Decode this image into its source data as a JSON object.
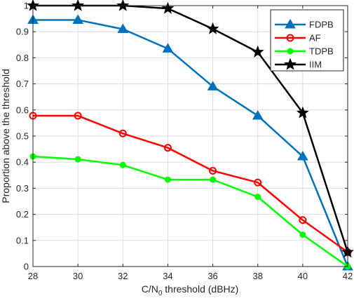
{
  "chart_data": {
    "type": "line",
    "title": "",
    "xlabel": "C/N",
    "xlabel_sub": "0",
    "xlabel_rest": " threshold (dBHz)",
    "ylabel": "Proportion above the threshold",
    "x": [
      28,
      30,
      32,
      34,
      36,
      38,
      40,
      42
    ],
    "xlim": [
      28,
      42
    ],
    "ylim": [
      0,
      1
    ],
    "xticks": [
      "28",
      "30",
      "32",
      "34",
      "36",
      "38",
      "40",
      "42"
    ],
    "yticks": [
      "0",
      "0.1",
      "0.2",
      "0.3",
      "0.4",
      "0.5",
      "0.6",
      "0.7",
      "0.8",
      "0.9",
      "1"
    ],
    "grid": true,
    "legend_position": "top-right",
    "series": [
      {
        "name": "FDPB",
        "color": "#0072BD",
        "marker": "triangle",
        "values": [
          0.945,
          0.945,
          0.91,
          0.835,
          0.69,
          0.578,
          0.422,
          0.0
        ]
      },
      {
        "name": "AF",
        "color": "#FF0000",
        "marker": "circle",
        "values": [
          0.578,
          0.578,
          0.51,
          0.455,
          0.367,
          0.322,
          0.178,
          0.055
        ]
      },
      {
        "name": "TDPB",
        "color": "#00FF00",
        "marker": "circle-filled",
        "values": [
          0.422,
          0.411,
          0.389,
          0.333,
          0.333,
          0.267,
          0.122,
          0.0
        ]
      },
      {
        "name": "IIM",
        "color": "#000000",
        "marker": "star",
        "values": [
          1.0,
          1.0,
          1.0,
          0.989,
          0.911,
          0.822,
          0.589,
          0.055
        ]
      }
    ]
  }
}
